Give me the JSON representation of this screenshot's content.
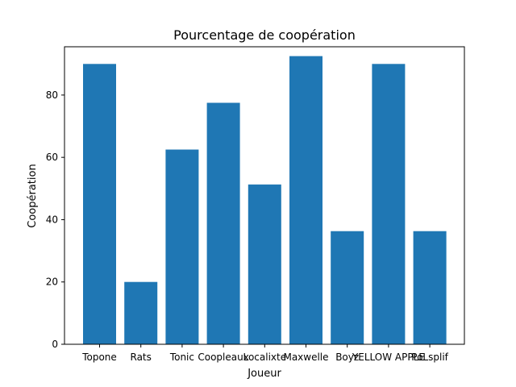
{
  "chart_data": {
    "type": "bar",
    "title": "Pourcentage de coopération",
    "xlabel": "Joueur",
    "ylabel": "Coopération",
    "categories": [
      "Topone",
      "Rats",
      "Tonic",
      "Coopleaux",
      "Localixte",
      "Maxwelle",
      "Boyz",
      "YELLOW APPLE",
      "PoLsplif"
    ],
    "values": [
      90,
      20,
      62.5,
      77.5,
      51.3,
      92.5,
      36.3,
      90,
      36.3
    ],
    "ylim": [
      0,
      95.5
    ],
    "yticks": [
      0,
      20,
      40,
      60,
      80
    ],
    "bar_color": "#1f77b4",
    "grid": false
  }
}
